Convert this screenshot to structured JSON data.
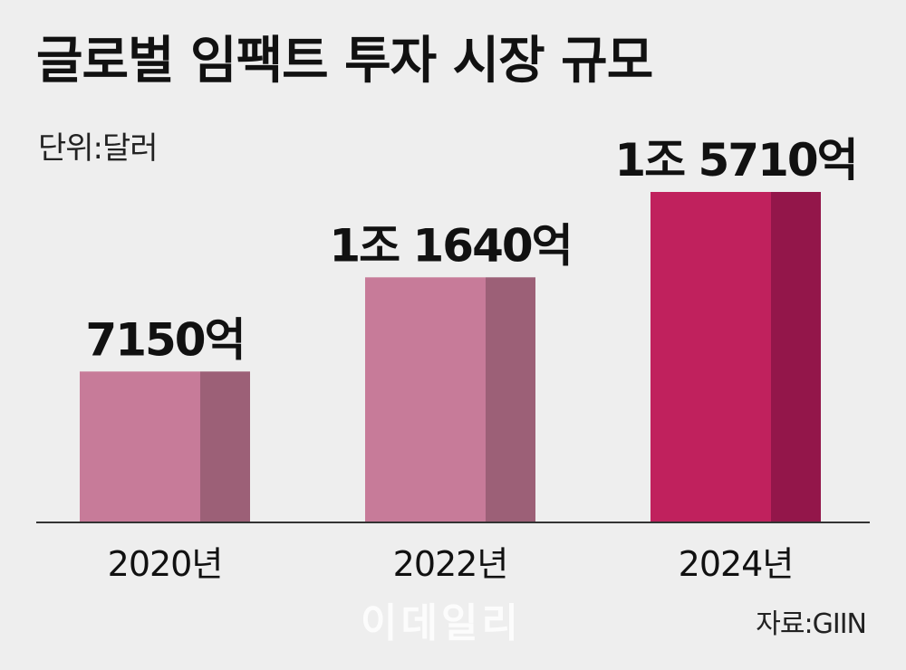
{
  "header": {
    "title": "글로벌 임팩트 투자 시장 규모",
    "unit": "단위:달러"
  },
  "footer": {
    "source": "자료:GIIN",
    "watermark": "이데일리"
  },
  "chart_data": {
    "type": "bar",
    "title": "글로벌 임팩트 투자 시장 규모",
    "ylabel": "단위:달러",
    "categories": [
      "2020년",
      "2022년",
      "2024년"
    ],
    "values": [
      7150,
      11640,
      15710
    ],
    "value_labels": [
      "7150억",
      "1조 1640억",
      "1조 5710억"
    ],
    "ylim": [
      0,
      16000
    ],
    "grid": false,
    "colors": [
      {
        "front": "#c77b99",
        "side": "#9c6077"
      },
      {
        "front": "#c77b99",
        "side": "#9c6077"
      },
      {
        "front": "#c0215d",
        "side": "#93164a"
      }
    ],
    "axis_color": "#333333"
  }
}
